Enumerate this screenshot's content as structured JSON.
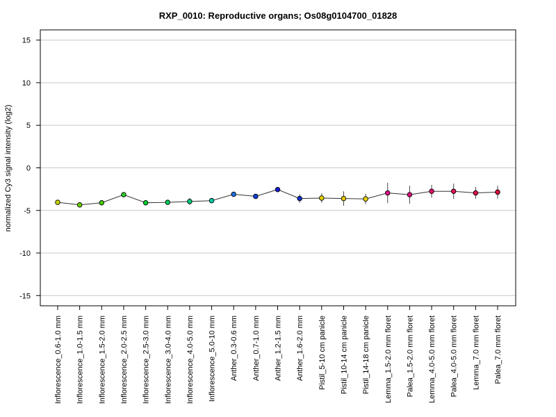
{
  "chart_data": {
    "type": "line",
    "title": "RXP_0010: Reproductive organs; Os08g0104700_01828",
    "xlabel": "",
    "ylabel": "normalized Cy3 signal intensity (log2)",
    "ylim": [
      -16.2,
      16.2
    ],
    "yticks": [
      -15,
      -10,
      -5,
      0,
      5,
      10,
      15
    ],
    "ytick_labels": [
      "-15",
      "-10",
      "-5",
      "0",
      "5",
      "10",
      "15"
    ],
    "grid": "horizontal",
    "categories": [
      "Inflorescence_0.6-1.0 mm",
      "Inflorescence_1.0-1.5 mm",
      "Inflorescence_1.5-2.0 mm",
      "Inflorescence_2.0-2.5 mm",
      "Inflorescence_2.5-3.0 mm",
      "Inflorescence_3.0-4.0 mm",
      "Inflorescence_4.0-5.0 mm",
      "Inflorescence_5.0-10 mm",
      "Anther_0.3-0.6 mm",
      "Anther_0.7-1.0 mm",
      "Anther_1.2-1.5 mm",
      "Anther_1.6-2.0 mm",
      "Pistil_5-10 cm panicle",
      "Pistil_10-14 cm panicle",
      "Pistil_14-18 cm panicle",
      "Lemma_1.5-2.0 mm floret",
      "Palea_1.5-2.0 mm floret",
      "Lemma_4.0-5.0 mm floret",
      "Palea_4.0-5.0 mm floret",
      "Lemma_7.0 mm floret",
      "Palea_7.0 mm floret"
    ],
    "series": [
      {
        "values": [
          -4.05,
          -4.35,
          -4.1,
          -3.15,
          -4.1,
          -4.05,
          -3.95,
          -3.85,
          -3.1,
          -3.35,
          -2.55,
          -3.6,
          -3.55,
          -3.6,
          -3.65,
          -2.95,
          -3.15,
          -2.75,
          -2.75,
          -2.95,
          -2.85
        ],
        "errors": [
          0.15,
          0.2,
          0.3,
          0.1,
          0.15,
          0.25,
          0.4,
          0.15,
          0.25,
          0.1,
          0.15,
          0.5,
          0.55,
          0.85,
          0.6,
          1.2,
          1.05,
          0.75,
          0.9,
          0.7,
          0.75
        ],
        "point_colors": [
          "#c8d400",
          "#6dcc00",
          "#46cc00",
          "#2ccc2c",
          "#00cc2e",
          "#00cc55",
          "#00cc7a",
          "#00cca4",
          "#1f6fe0",
          "#1240d8",
          "#1a1ad4",
          "#0f2fcc",
          "#e6d000",
          "#e8c800",
          "#e6d400",
          "#e0108a",
          "#e01078",
          "#e0106a",
          "#e0105a",
          "#e0104c",
          "#e01040"
        ]
      }
    ]
  }
}
